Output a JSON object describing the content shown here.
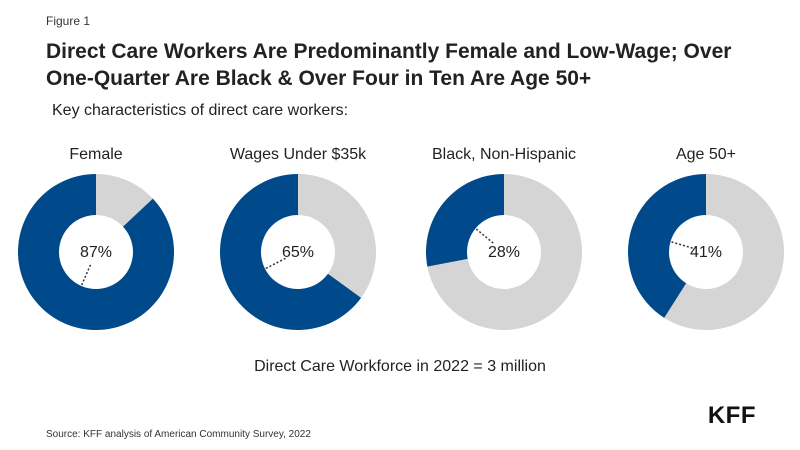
{
  "figure_label": "Figure 1",
  "title": "Direct Care Workers Are Predominantly Female and Low-Wage; Over One-Quarter Are Black & Over Four in Ten Are Age 50+",
  "subtitle": "Key characteristics of direct care workers:",
  "footnote": "Direct Care Workforce in 2022 = 3 million",
  "source": "Source: KFF analysis of American Community Survey, 2022",
  "logo": "KFF",
  "colors": {
    "highlight": "#004a8c",
    "remainder": "#d5d5d5"
  },
  "chart_data": [
    {
      "type": "pie",
      "title": "Female",
      "value": 87,
      "value_label": "87%",
      "remainder": 13
    },
    {
      "type": "pie",
      "title": "Wages Under $35k",
      "value": 65,
      "value_label": "65%",
      "remainder": 35
    },
    {
      "type": "pie",
      "title": "Black, Non-Hispanic",
      "value": 28,
      "value_label": "28%",
      "remainder": 72
    },
    {
      "type": "pie",
      "title": "Age 50+",
      "value": 41,
      "value_label": "41%",
      "remainder": 59
    }
  ]
}
